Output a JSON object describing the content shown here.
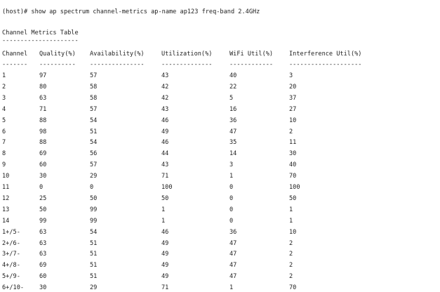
{
  "terminal": {
    "command_line": "(host)# show ap spectrum channel-metrics ap-name ap123 freq-band 2.4GHz",
    "table_title": "Channel Metrics Table",
    "table_title_underline": "---------------------",
    "headers": [
      "Channel",
      "Quality(%)",
      "Availability(%)",
      "Utilization(%)",
      "WiFi Util(%)",
      "Interference Util(%)"
    ],
    "header_underlines": [
      "-------",
      "----------",
      "---------------",
      "--------------",
      "------------",
      "--------------------"
    ],
    "rows": [
      [
        "1",
        "97",
        "57",
        "43",
        "40",
        "3"
      ],
      [
        "2",
        "80",
        "58",
        "42",
        "22",
        "20"
      ],
      [
        "3",
        "63",
        "58",
        "42",
        "5",
        "37"
      ],
      [
        "4",
        "71",
        "57",
        "43",
        "16",
        "27"
      ],
      [
        "5",
        "88",
        "54",
        "46",
        "36",
        "10"
      ],
      [
        "6",
        "98",
        "51",
        "49",
        "47",
        "2"
      ],
      [
        "7",
        "88",
        "54",
        "46",
        "35",
        "11"
      ],
      [
        "8",
        "69",
        "56",
        "44",
        "14",
        "30"
      ],
      [
        "9",
        "60",
        "57",
        "43",
        "3",
        "40"
      ],
      [
        "10",
        "30",
        "29",
        "71",
        "1",
        "70"
      ],
      [
        "11",
        "0",
        "0",
        "100",
        "0",
        "100"
      ],
      [
        "12",
        "25",
        "50",
        "50",
        "0",
        "50"
      ],
      [
        "13",
        "50",
        "99",
        "1",
        "0",
        "1"
      ],
      [
        "14",
        "99",
        "99",
        "1",
        "0",
        "1"
      ],
      [
        "1+/5-",
        "63",
        "54",
        "46",
        "36",
        "10"
      ],
      [
        "2+/6-",
        "63",
        "51",
        "49",
        "47",
        "2"
      ],
      [
        "3+/7-",
        "63",
        "51",
        "49",
        "47",
        "2"
      ],
      [
        "4+/8-",
        "69",
        "51",
        "49",
        "47",
        "2"
      ],
      [
        "5+/9-",
        "60",
        "51",
        "49",
        "47",
        "2"
      ],
      [
        "6+/10-",
        "30",
        "29",
        "71",
        "1",
        "70"
      ]
    ]
  }
}
